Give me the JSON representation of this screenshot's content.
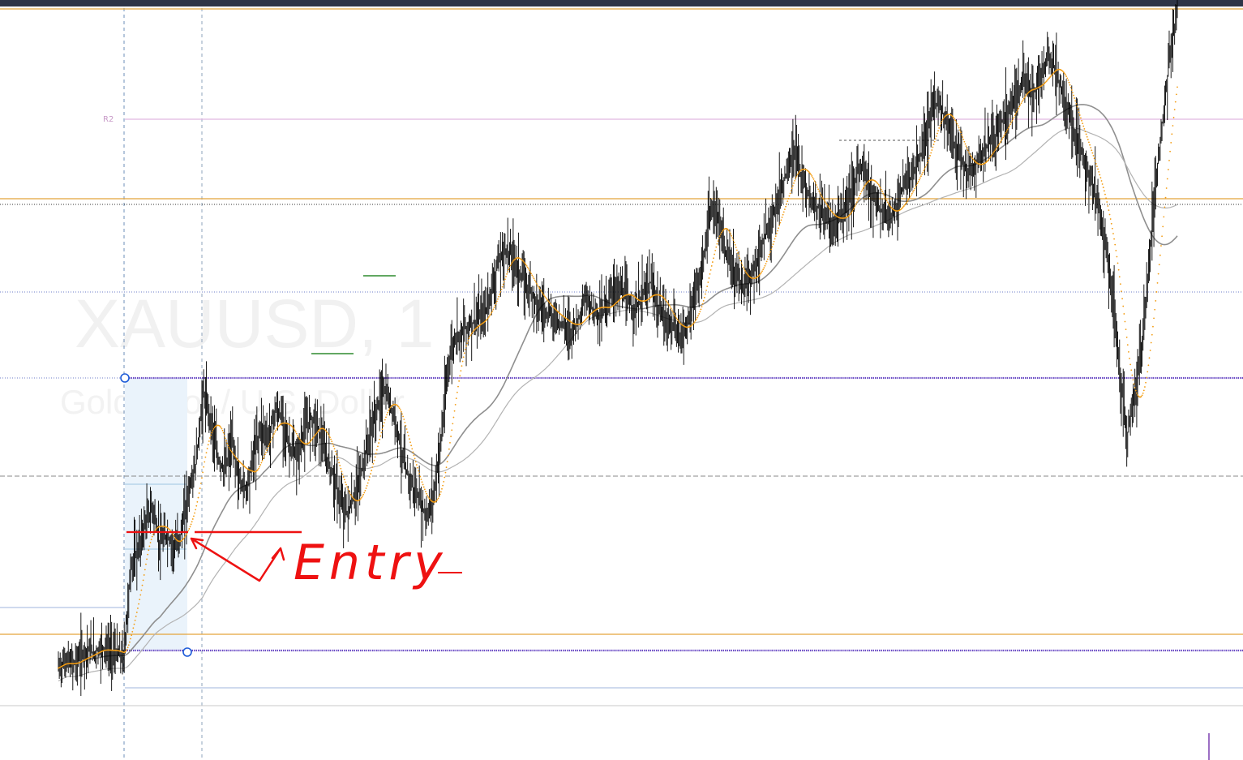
{
  "chart_data": {
    "type": "line",
    "symbol": "XAUUSD, 1",
    "description": "Gold Spot / U.S. Dollar",
    "title": "",
    "xlabel": "",
    "ylabel": "",
    "grid": false,
    "annotations": {
      "pivot_label": "R2",
      "handwritten": "Entry"
    },
    "colors": {
      "candles": "#000000",
      "fast_ma": "#f39c12",
      "slow_ma": "#a0a0a0",
      "orange_level": "#e3a33b",
      "purple_level": "#6a4bc4",
      "pivot_r2": "#e0b7e0",
      "annotation": "#ee1111",
      "range_box": "#eaf3fb"
    },
    "series": [
      {
        "name": "",
        "values": [
          98.5,
          99.2,
          98.8,
          99.6,
          100.2,
          99.9,
          100.5,
          100.1,
          99.8,
          99.5,
          108.0,
          109.5,
          112.0,
          113.5,
          110.0,
          110.8,
          109.6,
          111.2,
          115.0,
          117.5,
          124.0,
          122.0,
          118.0,
          117.0,
          119.5,
          116.0,
          115.2,
          118.5,
          121.0,
          120.0,
          122.5,
          121.8,
          119.0,
          118.0,
          120.5,
          122.0,
          120.8,
          118.2,
          116.5,
          114.0,
          113.0,
          114.5,
          117.0,
          120.0,
          122.5,
          124.5,
          123.0,
          120.5,
          117.0,
          115.5,
          114.0,
          112.5,
          115.0,
          120.0,
          127.0,
          129.5,
          130.0,
          130.5,
          131.0,
          131.5,
          134.0,
          136.5,
          137.5,
          136.8,
          135.0,
          134.0,
          133.0,
          132.0,
          131.5,
          131.0,
          130.5,
          130.0,
          131.0,
          133.0,
          132.0,
          131.5,
          132.5,
          134.0,
          133.5,
          132.5,
          132.0,
          133.5,
          134.5,
          132.0,
          131.0,
          130.5,
          129.5,
          130.5,
          133.0,
          135.0,
          140.0,
          141.5,
          138.0,
          136.0,
          135.0,
          134.0,
          135.0,
          137.0,
          139.0,
          141.0,
          143.0,
          145.0,
          146.5,
          144.0,
          142.5,
          141.5,
          141.0,
          139.5,
          140.5,
          141.5,
          143.0,
          145.5,
          144.0,
          142.0,
          141.0,
          140.5,
          141.5,
          143.5,
          144.0,
          145.5,
          147.5,
          150.5,
          151.5,
          149.0,
          147.5,
          146.0,
          144.5,
          145.5,
          146.5,
          147.5,
          148.5,
          150.0,
          151.5,
          152.5,
          153.0,
          152.0,
          153.5,
          155.5,
          154.5,
          152.0,
          150.0,
          148.0,
          146.0,
          144.0,
          142.0,
          138.0,
          133.0,
          126.0,
          120.0,
          124.0,
          128.0,
          136.0,
          144.0,
          150.0,
          156.0,
          160.0
        ]
      }
    ],
    "levels": [
      "orange_top",
      "orange_mid",
      "orange_low",
      "purple_high",
      "purple_low"
    ]
  }
}
